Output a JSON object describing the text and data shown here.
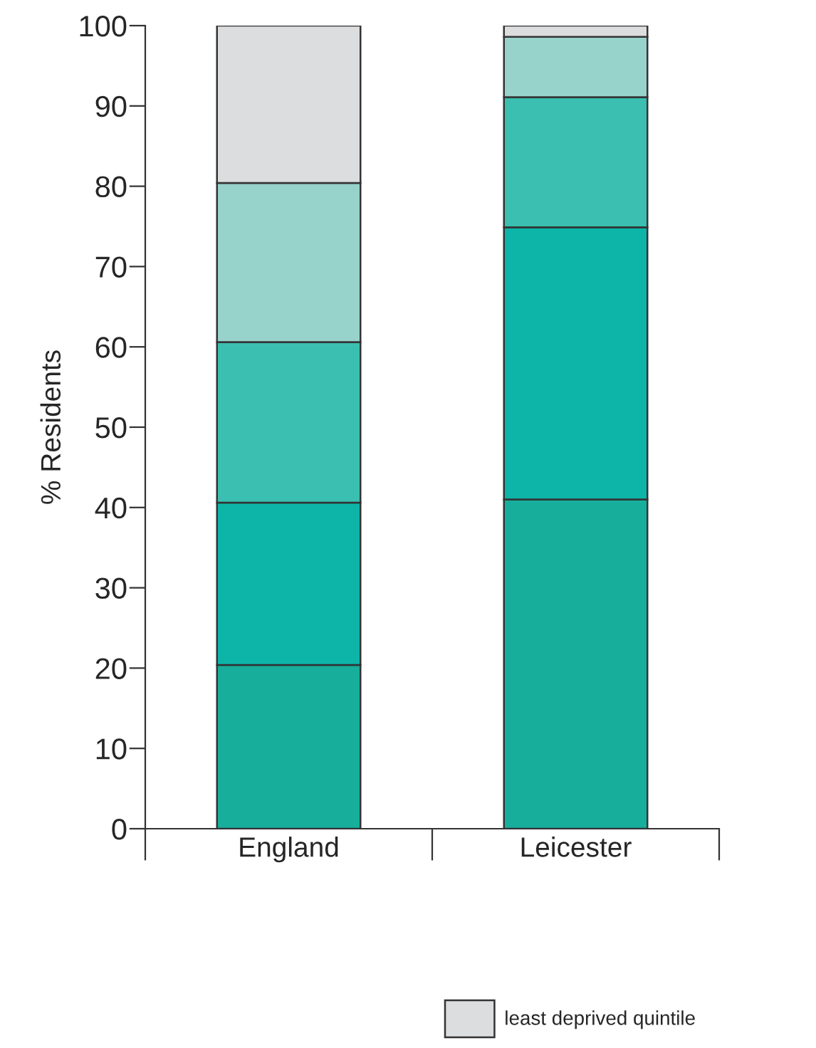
{
  "chart_data": {
    "type": "bar",
    "stacked": true,
    "ylabel": "% Residents",
    "categories": [
      "England",
      "Leicester"
    ],
    "series": [
      {
        "color": "#17ae9c",
        "values": [
          20.4,
          41.0
        ]
      },
      {
        "color": "#0db5a8",
        "values": [
          20.2,
          33.9
        ]
      },
      {
        "color": "#3abfb0",
        "values": [
          20.0,
          16.2
        ]
      },
      {
        "color": "#97d2cb",
        "values": [
          19.8,
          7.5
        ]
      },
      {
        "name": "least deprived quintile",
        "color": "#dcdddf",
        "values": [
          19.6,
          1.4
        ]
      }
    ],
    "ylim": [
      0,
      100
    ],
    "yticks": [
      0,
      10,
      20,
      30,
      40,
      50,
      60,
      70,
      80,
      90,
      100
    ],
    "grid": false,
    "legend": "bottom"
  }
}
